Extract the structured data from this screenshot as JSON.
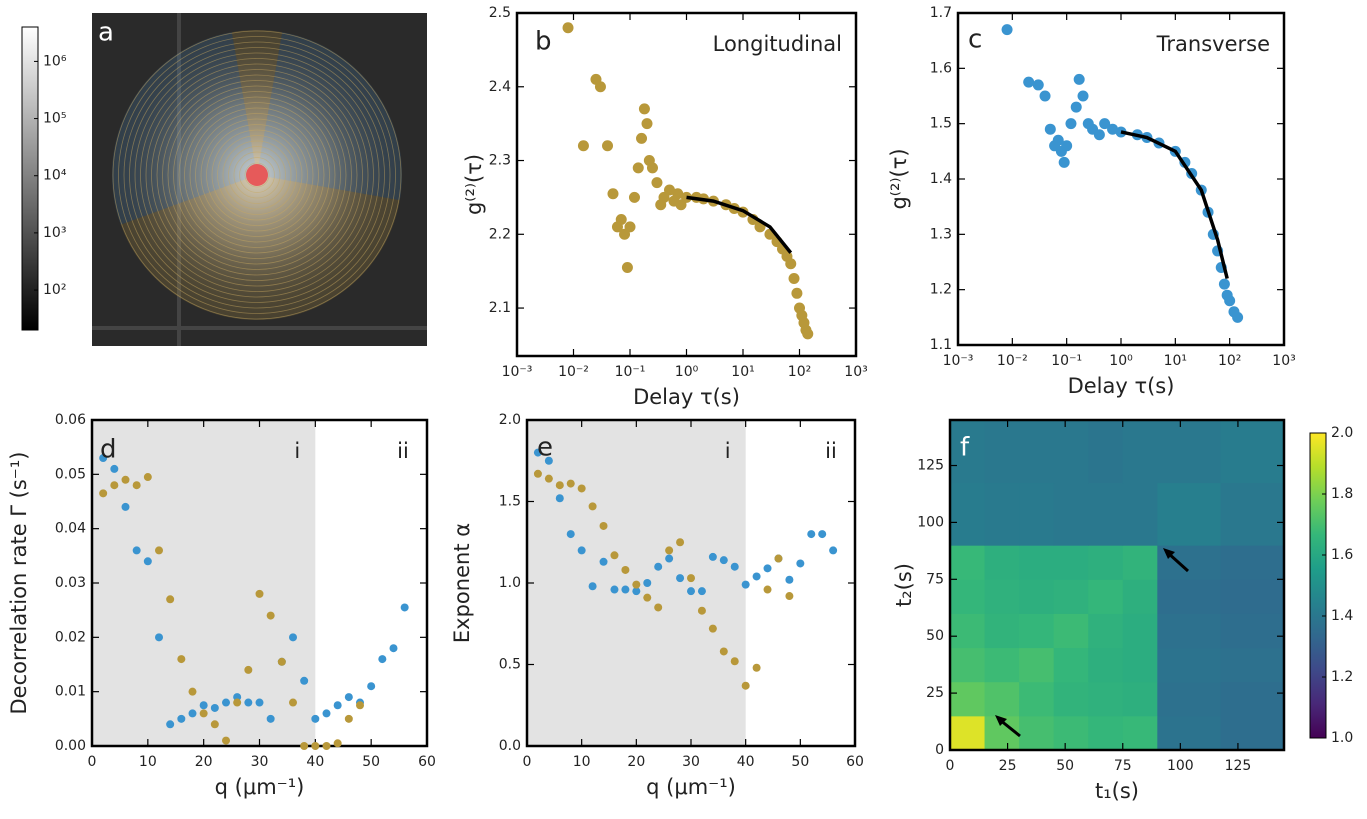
{
  "chart_data": [
    {
      "type": "image",
      "label": "a",
      "colorbar": {
        "scale": "log",
        "lim": [
          20,
          4000000
        ],
        "ticks": [
          {
            "value": 100,
            "label": "10²"
          },
          {
            "value": 1000,
            "label": "10³"
          },
          {
            "value": 10000,
            "label": "10⁴"
          },
          {
            "value": 100000,
            "label": "10⁵"
          },
          {
            "value": 1000000,
            "label": "10⁶"
          }
        ]
      }
    },
    {
      "type": "scatter",
      "label": "b",
      "title": "Longitudinal",
      "xlabel": "Delay τ(s)",
      "ylabel": "g⁽²⁾(τ)",
      "xscale": "log",
      "xlim": [
        0.001,
        1000
      ],
      "xticks": [
        {
          "value": 0.001,
          "label": "10⁻³"
        },
        {
          "value": 0.01,
          "label": "10⁻²"
        },
        {
          "value": 0.1,
          "label": "10⁻¹"
        },
        {
          "value": 1,
          "label": "10⁰"
        },
        {
          "value": 10,
          "label": "10¹"
        },
        {
          "value": 100,
          "label": "10²"
        },
        {
          "value": 1000,
          "label": "10³"
        }
      ],
      "ylim": [
        2.035,
        2.5
      ],
      "yticks": [
        2.1,
        2.2,
        2.3,
        2.4,
        2.5
      ],
      "series": [
        {
          "color": "#b8983a",
          "style": "points",
          "x": [
            0.008,
            0.015,
            0.025,
            0.03,
            0.04,
            0.05,
            0.06,
            0.07,
            0.08,
            0.09,
            0.1,
            0.12,
            0.14,
            0.16,
            0.18,
            0.2,
            0.22,
            0.25,
            0.3,
            0.35,
            0.4,
            0.5,
            0.6,
            0.7,
            0.8,
            1,
            1.5,
            2,
            3,
            5,
            7,
            10,
            15,
            20,
            30,
            40,
            50,
            60,
            70,
            80,
            90,
            100,
            110,
            120,
            130,
            140
          ],
          "values": [
            2.48,
            2.32,
            2.41,
            2.4,
            2.32,
            2.255,
            2.21,
            2.22,
            2.2,
            2.155,
            2.21,
            2.25,
            2.29,
            2.33,
            2.37,
            2.35,
            2.3,
            2.29,
            2.27,
            2.24,
            2.25,
            2.26,
            2.245,
            2.255,
            2.24,
            2.25,
            2.25,
            2.248,
            2.245,
            2.24,
            2.235,
            2.23,
            2.22,
            2.21,
            2.2,
            2.19,
            2.18,
            2.17,
            2.16,
            2.14,
            2.12,
            2.1,
            2.09,
            2.08,
            2.07,
            2.065
          ]
        },
        {
          "color": "#000000",
          "style": "line",
          "x": [
            1,
            3,
            10,
            30,
            70
          ],
          "values": [
            2.25,
            2.245,
            2.232,
            2.21,
            2.175
          ]
        }
      ]
    },
    {
      "type": "scatter",
      "label": "c",
      "title": "Transverse",
      "xlabel": "Delay τ(s)",
      "ylabel": "g⁽²⁾(τ)",
      "xscale": "log",
      "xlim": [
        0.001,
        1000
      ],
      "xticks": [
        {
          "value": 0.001,
          "label": "10⁻³"
        },
        {
          "value": 0.01,
          "label": "10⁻²"
        },
        {
          "value": 0.1,
          "label": "10⁻¹"
        },
        {
          "value": 1,
          "label": "10⁰"
        },
        {
          "value": 10,
          "label": "10¹"
        },
        {
          "value": 100,
          "label": "10²"
        },
        {
          "value": 1000,
          "label": "10³"
        }
      ],
      "ylim": [
        1.1,
        1.7
      ],
      "yticks": [
        1.1,
        1.2,
        1.3,
        1.4,
        1.5,
        1.6,
        1.7
      ],
      "series": [
        {
          "color": "#3a94d0",
          "style": "points",
          "x": [
            0.008,
            0.02,
            0.03,
            0.04,
            0.05,
            0.06,
            0.07,
            0.08,
            0.09,
            0.1,
            0.12,
            0.15,
            0.17,
            0.2,
            0.25,
            0.3,
            0.4,
            0.5,
            0.7,
            1,
            2,
            3,
            5,
            10,
            15,
            20,
            30,
            40,
            50,
            60,
            70,
            80,
            90,
            100,
            120,
            140
          ],
          "values": [
            1.67,
            1.575,
            1.57,
            1.55,
            1.49,
            1.46,
            1.47,
            1.45,
            1.43,
            1.46,
            1.5,
            1.53,
            1.58,
            1.55,
            1.5,
            1.49,
            1.48,
            1.5,
            1.49,
            1.485,
            1.48,
            1.475,
            1.465,
            1.45,
            1.43,
            1.41,
            1.38,
            1.34,
            1.3,
            1.27,
            1.24,
            1.21,
            1.19,
            1.18,
            1.16,
            1.15
          ]
        },
        {
          "color": "#000000",
          "style": "line",
          "x": [
            1,
            3,
            10,
            30,
            60,
            90
          ],
          "values": [
            1.485,
            1.475,
            1.45,
            1.38,
            1.29,
            1.22
          ]
        }
      ]
    },
    {
      "type": "scatter",
      "label": "d",
      "xlabel": "q (μm⁻¹)",
      "ylabel": "Decorrelation rate Γ (s⁻¹)",
      "xlim": [
        0,
        60
      ],
      "xticks": [
        0,
        10,
        20,
        30,
        40,
        50,
        60
      ],
      "ylim": [
        0,
        0.06
      ],
      "yticks": [
        {
          "value": 0,
          "label": "0.00"
        },
        {
          "value": 0.01,
          "label": "0.01"
        },
        {
          "value": 0.02,
          "label": "0.02"
        },
        {
          "value": 0.03,
          "label": "0.03"
        },
        {
          "value": 0.04,
          "label": "0.04"
        },
        {
          "value": 0.05,
          "label": "0.05"
        },
        {
          "value": 0.06,
          "label": "0.06"
        }
      ],
      "shade": [
        0,
        40
      ],
      "region_labels": [
        "i",
        "ii"
      ],
      "series": [
        {
          "color": "#3a94d0",
          "style": "points",
          "x": [
            2,
            4,
            6,
            8,
            10,
            12,
            14,
            16,
            18,
            20,
            22,
            24,
            26,
            28,
            30,
            32,
            34,
            36,
            38,
            40,
            42,
            44,
            46,
            48,
            50,
            52,
            54,
            56
          ],
          "values": [
            0.053,
            0.051,
            0.044,
            0.036,
            0.034,
            0.02,
            0.004,
            0.005,
            0.006,
            0.0075,
            0.007,
            0.008,
            0.009,
            0.008,
            0.008,
            0.005,
            0.0155,
            0.02,
            0.012,
            0.005,
            0.006,
            0.0075,
            0.009,
            0.008,
            0.011,
            0.016,
            0.018,
            0.0255
          ]
        },
        {
          "color": "#b8983a",
          "style": "points",
          "x": [
            2,
            4,
            6,
            8,
            10,
            12,
            14,
            16,
            18,
            20,
            22,
            24,
            26,
            28,
            30,
            32,
            34,
            36,
            38,
            40,
            42,
            44,
            46,
            48
          ],
          "values": [
            0.0465,
            0.048,
            0.049,
            0.048,
            0.0495,
            0.036,
            0.027,
            0.016,
            0.01,
            0.006,
            0.004,
            0.001,
            0.008,
            0.014,
            0.028,
            0.024,
            0.0155,
            0.008,
            0,
            0,
            0,
            0.0005,
            0.005,
            0.0075
          ]
        }
      ]
    },
    {
      "type": "scatter",
      "label": "e",
      "xlabel": "q (μm⁻¹)",
      "ylabel": "Exponent α",
      "xlim": [
        0,
        60
      ],
      "xticks": [
        0,
        10,
        20,
        30,
        40,
        50,
        60
      ],
      "ylim": [
        0,
        2
      ],
      "yticks": [
        {
          "value": 0,
          "label": "0.0"
        },
        {
          "value": 0.5,
          "label": "0.5"
        },
        {
          "value": 1,
          "label": "1.0"
        },
        {
          "value": 1.5,
          "label": "1.5"
        },
        {
          "value": 2,
          "label": "2.0"
        }
      ],
      "shade": [
        0,
        40
      ],
      "region_labels": [
        "i",
        "ii"
      ],
      "series": [
        {
          "color": "#3a94d0",
          "style": "points",
          "x": [
            2,
            4,
            6,
            8,
            10,
            12,
            14,
            16,
            18,
            20,
            22,
            24,
            26,
            28,
            30,
            32,
            34,
            36,
            38,
            40,
            42,
            44,
            46,
            48,
            50,
            52,
            54,
            56
          ],
          "values": [
            1.8,
            1.75,
            1.52,
            1.3,
            1.2,
            0.98,
            1.13,
            0.96,
            0.96,
            0.95,
            1.0,
            1.1,
            1.15,
            1.03,
            0.95,
            0.95,
            1.16,
            1.14,
            1.1,
            0.99,
            1.04,
            1.09,
            1.15,
            1.02,
            1.12,
            1.3,
            1.3,
            1.2
          ]
        },
        {
          "color": "#b8983a",
          "style": "points",
          "x": [
            2,
            4,
            6,
            8,
            10,
            12,
            14,
            16,
            18,
            20,
            22,
            24,
            26,
            28,
            30,
            32,
            34,
            36,
            38,
            40,
            42,
            44,
            46,
            48
          ],
          "values": [
            1.67,
            1.64,
            1.6,
            1.61,
            1.58,
            1.47,
            1.35,
            1.17,
            1.08,
            0.99,
            0.91,
            0.85,
            1.2,
            1.25,
            1.03,
            0.83,
            0.72,
            0.58,
            0.52,
            0.37,
            0.48,
            0.96,
            1.15,
            0.92
          ]
        }
      ]
    },
    {
      "type": "heatmap",
      "label": "f",
      "xlabel": "t₁(s)",
      "ylabel": "t₂(s)",
      "xlim": [
        0,
        145
      ],
      "xticks": [
        0,
        25,
        50,
        75,
        100,
        125
      ],
      "ylim": [
        0,
        145
      ],
      "yticks": [
        0,
        25,
        50,
        75,
        100,
        125
      ],
      "x_edges": [
        0,
        15,
        30,
        45,
        60,
        75,
        90,
        117.5,
        145
      ],
      "y_edges": [
        0,
        15,
        30,
        45,
        60,
        75,
        90,
        117.5,
        145
      ],
      "values": [
        [
          1.95,
          1.75,
          1.7,
          1.68,
          1.66,
          1.67,
          1.38,
          1.36
        ],
        [
          1.75,
          1.72,
          1.68,
          1.65,
          1.64,
          1.63,
          1.37,
          1.36
        ],
        [
          1.7,
          1.68,
          1.7,
          1.66,
          1.63,
          1.62,
          1.38,
          1.37
        ],
        [
          1.68,
          1.65,
          1.66,
          1.68,
          1.64,
          1.62,
          1.37,
          1.36
        ],
        [
          1.66,
          1.64,
          1.63,
          1.64,
          1.66,
          1.63,
          1.36,
          1.35
        ],
        [
          1.67,
          1.63,
          1.62,
          1.62,
          1.63,
          1.65,
          1.37,
          1.36
        ],
        [
          1.42,
          1.41,
          1.41,
          1.4,
          1.4,
          1.4,
          1.43,
          1.4
        ],
        [
          1.41,
          1.4,
          1.4,
          1.4,
          1.39,
          1.4,
          1.4,
          1.42
        ]
      ],
      "colorbar": {
        "lim": [
          1,
          2
        ],
        "ticks": [
          {
            "value": 1,
            "label": "1.0"
          },
          {
            "value": 1.2,
            "label": "1.2"
          },
          {
            "value": 1.4,
            "label": "1.4"
          },
          {
            "value": 1.6,
            "label": "1.6"
          },
          {
            "value": 1.8,
            "label": "1.8"
          },
          {
            "value": 2,
            "label": "2.0"
          }
        ]
      }
    }
  ]
}
